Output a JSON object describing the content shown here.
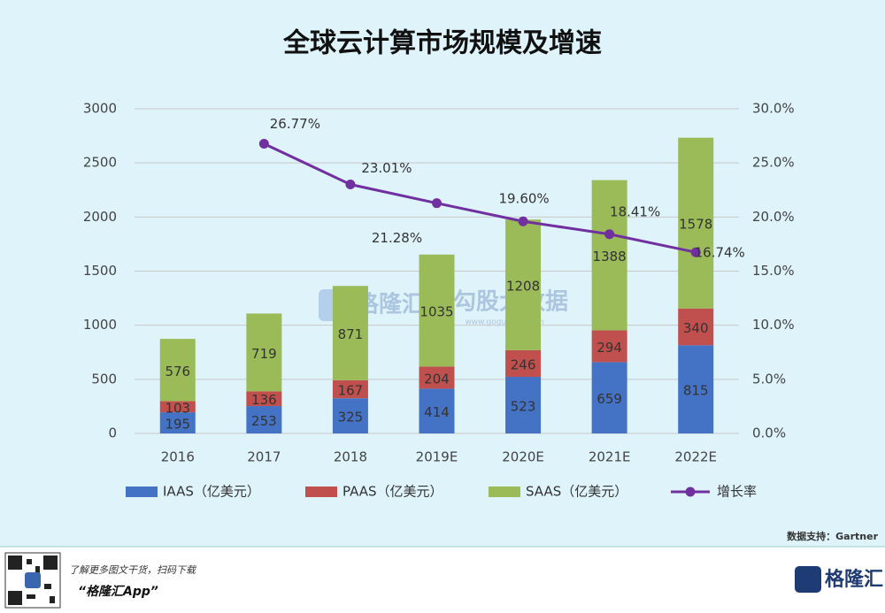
{
  "chart_data": {
    "type": "bar",
    "title": "全球云计算市场规模及增速",
    "categories": [
      "2016",
      "2017",
      "2018",
      "2019E",
      "2020E",
      "2021E",
      "2022E"
    ],
    "series": [
      {
        "name": "IAAS（亿美元）",
        "color": "#4472c4",
        "values": [
          195,
          253,
          325,
          414,
          523,
          659,
          815
        ]
      },
      {
        "name": "PAAS（亿美元）",
        "color": "#c0504d",
        "values": [
          103,
          136,
          167,
          204,
          246,
          294,
          340
        ]
      },
      {
        "name": "SAAS（亿美元）",
        "color": "#9bbb59",
        "values": [
          576,
          719,
          871,
          1035,
          1208,
          1388,
          1578
        ]
      },
      {
        "name": "增长率",
        "color": "#7030a0",
        "type": "line",
        "axis": "y2",
        "values": [
          null,
          26.77,
          23.01,
          21.28,
          19.6,
          18.41,
          16.74
        ],
        "value_labels": [
          null,
          "26.77%",
          "23.01%",
          "21.28%",
          "19.60%",
          "18.41%",
          "16.74%"
        ]
      }
    ],
    "ylim": [
      0,
      3000
    ],
    "yticks": [
      0,
      500,
      1000,
      1500,
      2000,
      2500,
      3000
    ],
    "y2lim": [
      0,
      30
    ],
    "y2ticks": [
      {
        "value": 0,
        "label": "0.0%"
      },
      {
        "value": 5,
        "label": "5.0%"
      },
      {
        "value": 10,
        "label": "10.0%"
      },
      {
        "value": 15,
        "label": "15.0%"
      },
      {
        "value": 20,
        "label": "20.0%"
      },
      {
        "value": 25,
        "label": "25.0%"
      },
      {
        "value": 30,
        "label": "30.0%"
      }
    ],
    "grid": true,
    "legend": "bottom",
    "source": "数据支持：Gartner"
  },
  "watermark": {
    "brand": "格隆汇",
    "divider": "|",
    "partner": "勾股大数据",
    "url": "www.gogudata.com"
  },
  "footer": {
    "promo": "了解更多图文干货，扫码下载",
    "app": "“格隆汇App”",
    "logo": "格隆汇"
  }
}
